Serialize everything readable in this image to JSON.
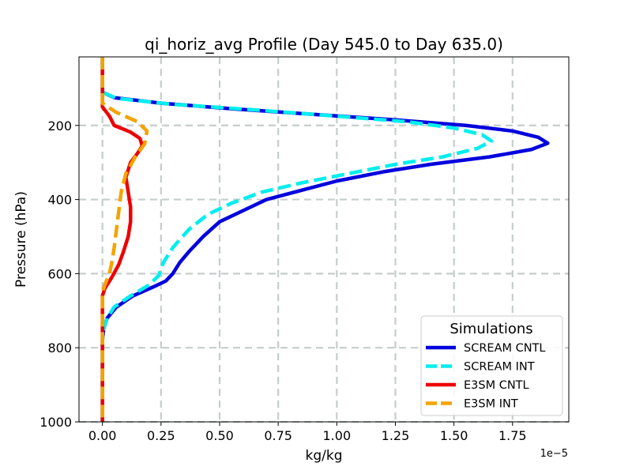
{
  "chart_data": {
    "type": "line",
    "title": "qi_horiz_avg Profile (Day 545.0 to Day 635.0)",
    "xlabel": "kg/kg",
    "ylabel": "Pressure (hPa)",
    "x_offset_label": "1e−5",
    "xlim": [
      -0.1,
      1.99
    ],
    "ylim": [
      1000,
      15
    ],
    "y_inverted": true,
    "x_scale": 1e-05,
    "xticks": [
      0.0,
      0.25,
      0.5,
      0.75,
      1.0,
      1.25,
      1.5,
      1.75
    ],
    "xtick_labels": [
      "0.00",
      "0.25",
      "0.50",
      "0.75",
      "1.00",
      "1.25",
      "1.50",
      "1.75"
    ],
    "yticks": [
      200,
      400,
      600,
      800,
      1000
    ],
    "ytick_labels": [
      "200",
      "400",
      "600",
      "800",
      "1000"
    ],
    "grid": true,
    "legend": {
      "title": "Simulations",
      "location": "lower-right",
      "entries": [
        "SCREAM CNTL",
        "SCREAM INT",
        "E3SM CNTL",
        "E3SM INT"
      ]
    },
    "series": [
      {
        "name": "SCREAM CNTL",
        "color": "#0000dd",
        "style": "solid",
        "points": [
          [
            0.0,
            15
          ],
          [
            0.0,
            110
          ],
          [
            0.05,
            125
          ],
          [
            0.25,
            140
          ],
          [
            0.55,
            155
          ],
          [
            0.9,
            170
          ],
          [
            1.25,
            185
          ],
          [
            1.55,
            200
          ],
          [
            1.75,
            215
          ],
          [
            1.86,
            232
          ],
          [
            1.9,
            248
          ],
          [
            1.83,
            265
          ],
          [
            1.65,
            285
          ],
          [
            1.4,
            305
          ],
          [
            1.2,
            325
          ],
          [
            1.0,
            350
          ],
          [
            0.85,
            375
          ],
          [
            0.7,
            400
          ],
          [
            0.6,
            430
          ],
          [
            0.5,
            460
          ],
          [
            0.43,
            500
          ],
          [
            0.37,
            540
          ],
          [
            0.33,
            570
          ],
          [
            0.3,
            600
          ],
          [
            0.27,
            620
          ],
          [
            0.22,
            635
          ],
          [
            0.13,
            660
          ],
          [
            0.06,
            690
          ],
          [
            0.02,
            720
          ],
          [
            0.005,
            750
          ],
          [
            0.0,
            780
          ],
          [
            0.0,
            1000
          ]
        ]
      },
      {
        "name": "SCREAM INT",
        "color": "#00eeee",
        "style": "dashed",
        "points": [
          [
            0.0,
            15
          ],
          [
            0.0,
            110
          ],
          [
            0.06,
            127
          ],
          [
            0.3,
            143
          ],
          [
            0.65,
            158
          ],
          [
            1.0,
            175
          ],
          [
            1.3,
            190
          ],
          [
            1.5,
            207
          ],
          [
            1.62,
            225
          ],
          [
            1.66,
            242
          ],
          [
            1.6,
            262
          ],
          [
            1.45,
            285
          ],
          [
            1.25,
            305
          ],
          [
            1.05,
            330
          ],
          [
            0.85,
            355
          ],
          [
            0.68,
            380
          ],
          [
            0.55,
            410
          ],
          [
            0.45,
            440
          ],
          [
            0.37,
            480
          ],
          [
            0.3,
            530
          ],
          [
            0.26,
            570
          ],
          [
            0.24,
            605
          ],
          [
            0.2,
            630
          ],
          [
            0.12,
            660
          ],
          [
            0.05,
            690
          ],
          [
            0.02,
            720
          ],
          [
            0.005,
            750
          ],
          [
            0.0,
            780
          ],
          [
            0.0,
            1000
          ]
        ]
      },
      {
        "name": "E3SM CNTL",
        "color": "#ee0000",
        "style": "solid",
        "points": [
          [
            0.0,
            15
          ],
          [
            0.0,
            150
          ],
          [
            0.03,
            175
          ],
          [
            0.05,
            200
          ],
          [
            0.12,
            218
          ],
          [
            0.16,
            235
          ],
          [
            0.17,
            255
          ],
          [
            0.15,
            275
          ],
          [
            0.12,
            300
          ],
          [
            0.1,
            340
          ],
          [
            0.11,
            380
          ],
          [
            0.12,
            420
          ],
          [
            0.12,
            460
          ],
          [
            0.11,
            500
          ],
          [
            0.09,
            540
          ],
          [
            0.07,
            575
          ],
          [
            0.04,
            610
          ],
          [
            0.01,
            640
          ],
          [
            0.0,
            660
          ],
          [
            0.0,
            1000
          ]
        ]
      },
      {
        "name": "E3SM INT",
        "color": "#f5a300",
        "style": "dashed",
        "points": [
          [
            0.0,
            15
          ],
          [
            0.0,
            140
          ],
          [
            0.06,
            165
          ],
          [
            0.15,
            190
          ],
          [
            0.19,
            215
          ],
          [
            0.18,
            250
          ],
          [
            0.14,
            285
          ],
          [
            0.1,
            330
          ],
          [
            0.08,
            380
          ],
          [
            0.07,
            430
          ],
          [
            0.06,
            480
          ],
          [
            0.05,
            530
          ],
          [
            0.04,
            570
          ],
          [
            0.03,
            600
          ],
          [
            0.01,
            630
          ],
          [
            0.0,
            650
          ],
          [
            0.0,
            1000
          ]
        ]
      }
    ]
  }
}
